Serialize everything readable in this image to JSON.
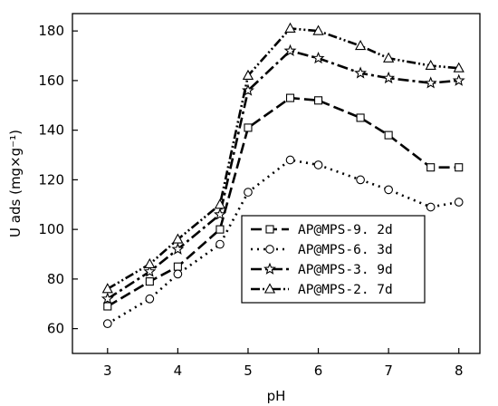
{
  "chart_data": {
    "type": "line",
    "xlabel": "pH",
    "ylabel": "U ads (mg×g⁻¹)",
    "xlim": [
      2.5,
      8.3
    ],
    "ylim": [
      50,
      187
    ],
    "x_ticks": [
      3,
      4,
      5,
      6,
      7,
      8
    ],
    "y_ticks": [
      60,
      80,
      100,
      120,
      140,
      160,
      180
    ],
    "grid": false,
    "legend_position": "right",
    "series": [
      {
        "name": "AP@MPS-9. 2d",
        "marker": "square",
        "dash": "12 5",
        "x": [
          3,
          3.6,
          4,
          4.6,
          5,
          5.6,
          6,
          6.6,
          7,
          7.6,
          8
        ],
        "y": [
          69,
          79,
          85,
          100,
          141,
          153,
          152,
          145,
          138,
          125,
          125
        ]
      },
      {
        "name": "AP@MPS-6. 3d",
        "marker": "circle",
        "dash": "2 5",
        "x": [
          3,
          3.6,
          4,
          4.6,
          5,
          5.6,
          6,
          6.6,
          7,
          7.6,
          8
        ],
        "y": [
          62,
          72,
          82,
          94,
          115,
          128,
          126,
          120,
          116,
          109,
          111
        ]
      },
      {
        "name": "AP@MPS-3. 9d",
        "marker": "star",
        "dash": "12 4 3 4",
        "x": [
          3,
          3.6,
          4,
          4.6,
          5,
          5.6,
          6,
          6.6,
          7,
          7.6,
          8
        ],
        "y": [
          72,
          83,
          92,
          106,
          156,
          172,
          169,
          163,
          161,
          159,
          160
        ]
      },
      {
        "name": "AP@MPS-2. 7d",
        "marker": "triangle",
        "dash": "10 3 2 3 2 3",
        "x": [
          3,
          3.6,
          4,
          4.6,
          5,
          5.6,
          6,
          6.6,
          7,
          7.6,
          8
        ],
        "y": [
          76,
          86,
          96,
          110,
          162,
          181,
          180,
          174,
          169,
          166,
          165
        ]
      }
    ]
  }
}
